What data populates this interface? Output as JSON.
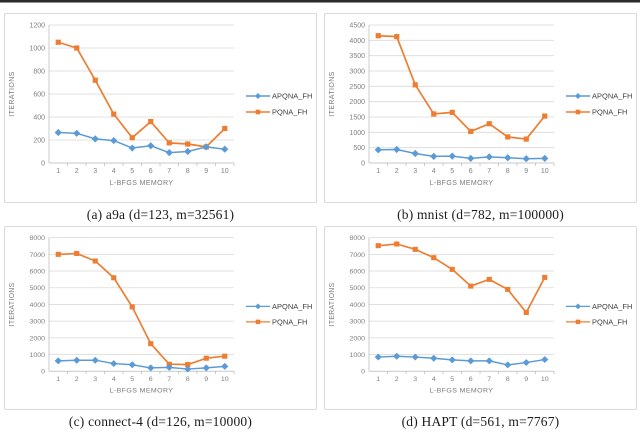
{
  "figure": {
    "description": "2x2 grid of line charts comparing APQNA_FH vs PQNA_FH iterations against L-BFGS memory",
    "top_rule": true
  },
  "style": {
    "series_blue": "#5B9BD5",
    "series_orange": "#ED7D31",
    "gridline_color": "#d9d9d9",
    "axis_color": "#bfbfbf",
    "tick_text_color": "#7f7f7f",
    "legend_text_color": "#404040",
    "panel_border_color": "#d9d9d9"
  },
  "chart_data": [
    {
      "type": "line",
      "caption": "(a) a9a (d=123, m=32561)",
      "xlabel": "L-BFGS MEMORY",
      "ylabel": "ITERATIONS",
      "x": [
        1,
        2,
        3,
        4,
        5,
        6,
        7,
        8,
        9,
        10
      ],
      "ylim": [
        0,
        1200
      ],
      "ytick_interval": 200,
      "grid": true,
      "legend_position": "right",
      "series": [
        {
          "name": "APQNA_FH",
          "color": "#5B9BD5",
          "marker": "diamond",
          "values": [
            265,
            258,
            210,
            195,
            130,
            150,
            90,
            100,
            140,
            120
          ]
        },
        {
          "name": "PQNA_FH",
          "color": "#ED7D31",
          "marker": "square",
          "values": [
            1050,
            1000,
            720,
            425,
            220,
            360,
            175,
            165,
            140,
            300
          ]
        }
      ]
    },
    {
      "type": "line",
      "caption": "(b) mnist (d=782, m=100000)",
      "xlabel": "L-BFGS MEMORY",
      "ylabel": "ITERATIONS",
      "x": [
        1,
        2,
        3,
        4,
        5,
        6,
        7,
        8,
        9,
        10
      ],
      "ylim": [
        0,
        4500
      ],
      "ytick_interval": 500,
      "grid": true,
      "legend_position": "right",
      "series": [
        {
          "name": "APQNA_FH",
          "color": "#5B9BD5",
          "marker": "diamond",
          "values": [
            430,
            440,
            310,
            215,
            225,
            150,
            200,
            170,
            140,
            150
          ]
        },
        {
          "name": "PQNA_FH",
          "color": "#ED7D31",
          "marker": "square",
          "values": [
            4150,
            4120,
            2550,
            1600,
            1650,
            1030,
            1280,
            850,
            780,
            1530
          ]
        }
      ]
    },
    {
      "type": "line",
      "caption": "(c) connect-4 (d=126, m=10000)",
      "xlabel": "L-BFGS MEMORY",
      "ylabel": "ITERATIONS",
      "x": [
        1,
        2,
        3,
        4,
        5,
        6,
        7,
        8,
        9,
        10
      ],
      "ylim": [
        0,
        8000
      ],
      "ytick_interval": 1000,
      "grid": true,
      "legend_position": "right",
      "series": [
        {
          "name": "APQNA_FH",
          "color": "#5B9BD5",
          "marker": "diamond",
          "values": [
            620,
            660,
            660,
            460,
            390,
            200,
            230,
            130,
            200,
            290
          ]
        },
        {
          "name": "PQNA_FH",
          "color": "#ED7D31",
          "marker": "square",
          "values": [
            7000,
            7050,
            6600,
            5600,
            3850,
            1650,
            420,
            400,
            780,
            900
          ]
        }
      ]
    },
    {
      "type": "line",
      "caption": "(d) HAPT (d=561, m=7767)",
      "xlabel": "L-BFGS MEMORY",
      "ylabel": "ITERATIONS",
      "x": [
        1,
        2,
        3,
        4,
        5,
        6,
        7,
        8,
        9,
        10
      ],
      "ylim": [
        0,
        8000
      ],
      "ytick_interval": 1000,
      "grid": true,
      "legend_position": "right",
      "series": [
        {
          "name": "APQNA_FH",
          "color": "#5B9BD5",
          "marker": "diamond",
          "values": [
            850,
            900,
            850,
            780,
            680,
            620,
            620,
            380,
            520,
            700
          ]
        },
        {
          "name": "PQNA_FH",
          "color": "#ED7D31",
          "marker": "square",
          "values": [
            7520,
            7620,
            7300,
            6800,
            6100,
            5100,
            5500,
            4900,
            3520,
            5620
          ]
        }
      ]
    }
  ]
}
